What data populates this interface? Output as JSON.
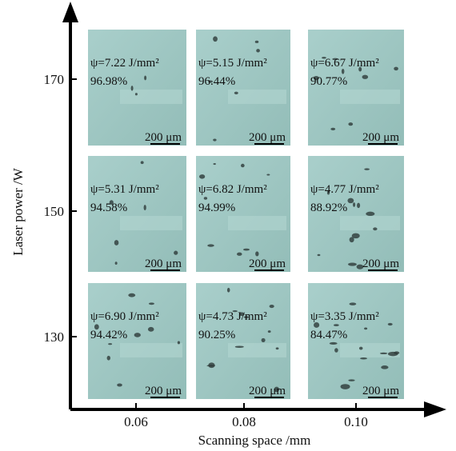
{
  "x_axis": {
    "label": "Scanning space /mm",
    "ticks": [
      "0.06",
      "0.08",
      "0.10"
    ]
  },
  "y_axis": {
    "label": "Laser power /W",
    "ticks": [
      "170",
      "150",
      "130"
    ]
  },
  "scale_bar": "200 μm",
  "panels": [
    [
      {
        "energy": "ψ=7.22 J/mm²",
        "density": "96.98%"
      },
      {
        "energy": "ψ=5.15 J/mm²",
        "density": "96.44%"
      },
      {
        "energy": "ψ=6.67 J/mm²",
        "density": "90.77%"
      }
    ],
    [
      {
        "energy": "ψ=5.31 J/mm²",
        "density": "94.58%"
      },
      {
        "energy": "ψ=6.82 J/mm²",
        "density": "94.99%"
      },
      {
        "energy": "ψ=4.77 J/mm²",
        "density": "88.92%"
      }
    ],
    [
      {
        "energy": "ψ=6.90 J/mm²",
        "density": "94.42%"
      },
      {
        "energy": "ψ=4.73 J/mm²",
        "density": "90.25%"
      },
      {
        "energy": "ψ=3.35 J/mm²",
        "density": "84.47%"
      }
    ]
  ]
}
